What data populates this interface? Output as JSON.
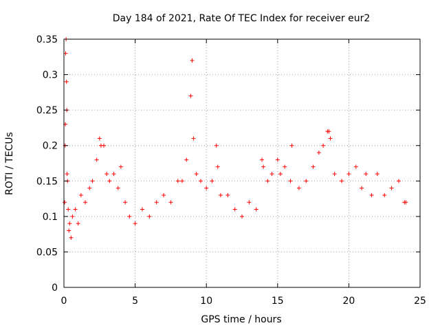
{
  "chart_data": {
    "type": "scatter",
    "title": "Day 184 of 2021, Rate Of TEC Index for receiver eur2",
    "xlabel": "GPS time / hours",
    "ylabel": "ROTI / TECUs",
    "xlim": [
      0,
      25
    ],
    "ylim": [
      0,
      0.35
    ],
    "xticks": [
      0,
      5,
      10,
      15,
      20,
      25
    ],
    "xtick_labels": [
      "0",
      "5",
      "10",
      "15",
      "20",
      "25"
    ],
    "yticks": [
      0,
      0.05,
      0.1,
      0.15,
      0.2,
      0.25,
      0.3,
      0.35
    ],
    "ytick_labels": [
      "0",
      "0.05",
      "0.1",
      "0.15",
      "0.2",
      "0.25",
      "0.3",
      "0.35"
    ],
    "grid": true,
    "marker": "+",
    "color": "#ff0000",
    "series": [
      {
        "x": [
          0.05,
          0.08,
          0.1,
          0.12,
          0.15,
          0.18,
          0.2,
          0.22,
          0.25,
          0.3,
          0.35,
          0.4,
          0.5,
          0.6,
          0.8,
          1.0,
          1.2,
          1.5,
          1.8,
          2.0,
          2.3,
          2.5,
          2.6,
          2.8,
          3.0,
          3.2,
          3.5,
          3.8,
          4.0,
          4.3,
          4.6,
          5.0,
          5.5,
          6.0,
          6.5,
          7.0,
          7.5,
          8.0,
          8.3,
          8.6,
          8.9,
          9.0,
          9.1,
          9.3,
          9.6,
          10.0,
          10.4,
          10.7,
          10.8,
          11.0,
          11.5,
          12.0,
          12.5,
          13.0,
          13.5,
          13.9,
          14.0,
          14.3,
          14.6,
          15.0,
          15.2,
          15.5,
          15.9,
          16.0,
          16.5,
          17.0,
          17.5,
          17.9,
          18.2,
          18.5,
          18.6,
          18.7,
          19.0,
          19.5,
          20.0,
          20.5,
          20.9,
          21.2,
          21.6,
          22.0,
          22.5,
          23.0,
          23.5,
          23.9,
          24.0
        ],
        "y": [
          0.12,
          0.2,
          0.23,
          0.33,
          0.35,
          0.29,
          0.25,
          0.16,
          0.15,
          0.11,
          0.08,
          0.09,
          0.07,
          0.1,
          0.11,
          0.09,
          0.13,
          0.12,
          0.14,
          0.15,
          0.18,
          0.21,
          0.2,
          0.2,
          0.16,
          0.15,
          0.16,
          0.14,
          0.17,
          0.12,
          0.1,
          0.09,
          0.11,
          0.1,
          0.12,
          0.13,
          0.12,
          0.15,
          0.15,
          0.18,
          0.27,
          0.32,
          0.21,
          0.16,
          0.15,
          0.14,
          0.15,
          0.2,
          0.17,
          0.13,
          0.13,
          0.11,
          0.1,
          0.12,
          0.11,
          0.18,
          0.17,
          0.15,
          0.16,
          0.18,
          0.16,
          0.17,
          0.15,
          0.2,
          0.14,
          0.15,
          0.17,
          0.19,
          0.2,
          0.22,
          0.22,
          0.21,
          0.16,
          0.15,
          0.16,
          0.17,
          0.14,
          0.16,
          0.13,
          0.16,
          0.13,
          0.14,
          0.15,
          0.12,
          0.12
        ]
      }
    ]
  }
}
